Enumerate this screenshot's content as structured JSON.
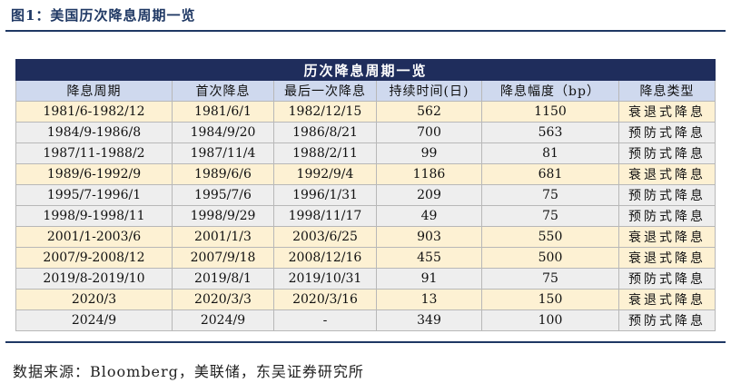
{
  "figure": {
    "title": "图1：美国历次降息周期一览"
  },
  "table": {
    "banner": "历次降息周期一览",
    "headers": [
      "降息周期",
      "首次降息",
      "最后一次降息",
      "持续时间(日)",
      "降息幅度（bp）",
      "降息类型"
    ],
    "rows": [
      {
        "cycle": "1981/6-1982/12",
        "first": "1981/6/1",
        "last": "1982/12/15",
        "days": "562",
        "bp": "1150",
        "type": "衰退式降息",
        "kind": "recession"
      },
      {
        "cycle": "1984/9-1986/8",
        "first": "1984/9/20",
        "last": "1986/8/21",
        "days": "700",
        "bp": "563",
        "type": "预防式降息",
        "kind": "preventive"
      },
      {
        "cycle": "1987/11-1988/2",
        "first": "1987/11/4",
        "last": "1988/2/11",
        "days": "99",
        "bp": "81",
        "type": "预防式降息",
        "kind": "preventive"
      },
      {
        "cycle": "1989/6-1992/9",
        "first": "1989/6/6",
        "last": "1992/9/4",
        "days": "1186",
        "bp": "681",
        "type": "衰退式降息",
        "kind": "recession"
      },
      {
        "cycle": "1995/7-1996/1",
        "first": "1995/7/6",
        "last": "1996/1/31",
        "days": "209",
        "bp": "75",
        "type": "预防式降息",
        "kind": "preventive"
      },
      {
        "cycle": "1998/9-1998/11",
        "first": "1998/9/29",
        "last": "1998/11/17",
        "days": "49",
        "bp": "75",
        "type": "预防式降息",
        "kind": "preventive"
      },
      {
        "cycle": "2001/1-2003/6",
        "first": "2001/1/3",
        "last": "2003/6/25",
        "days": "903",
        "bp": "550",
        "type": "衰退式降息",
        "kind": "recession"
      },
      {
        "cycle": "2007/9-2008/12",
        "first": "2007/9/18",
        "last": "2008/12/16",
        "days": "455",
        "bp": "500",
        "type": "衰退式降息",
        "kind": "recession"
      },
      {
        "cycle": "2019/8-2019/10",
        "first": "2019/8/1",
        "last": "2019/10/31",
        "days": "91",
        "bp": "75",
        "type": "预防式降息",
        "kind": "preventive"
      },
      {
        "cycle": "2020/3",
        "first": "2020/3/3",
        "last": "2020/3/16",
        "days": "13",
        "bp": "150",
        "type": "衰退式降息",
        "kind": "recession"
      },
      {
        "cycle": "2024/9",
        "first": "2024/9",
        "last": "-",
        "days": "349",
        "bp": "100",
        "type": "预防式降息",
        "kind": "preventive"
      }
    ]
  },
  "footer": {
    "source": "数据来源：Bloomberg，美联储，东吴证券研究所"
  },
  "colors": {
    "banner_bg": "#1f2d5c",
    "header_bg": "#cfd9ee",
    "recession_row_bg": "#fdf1d3",
    "preventive_row_bg": "#eeeeee"
  }
}
